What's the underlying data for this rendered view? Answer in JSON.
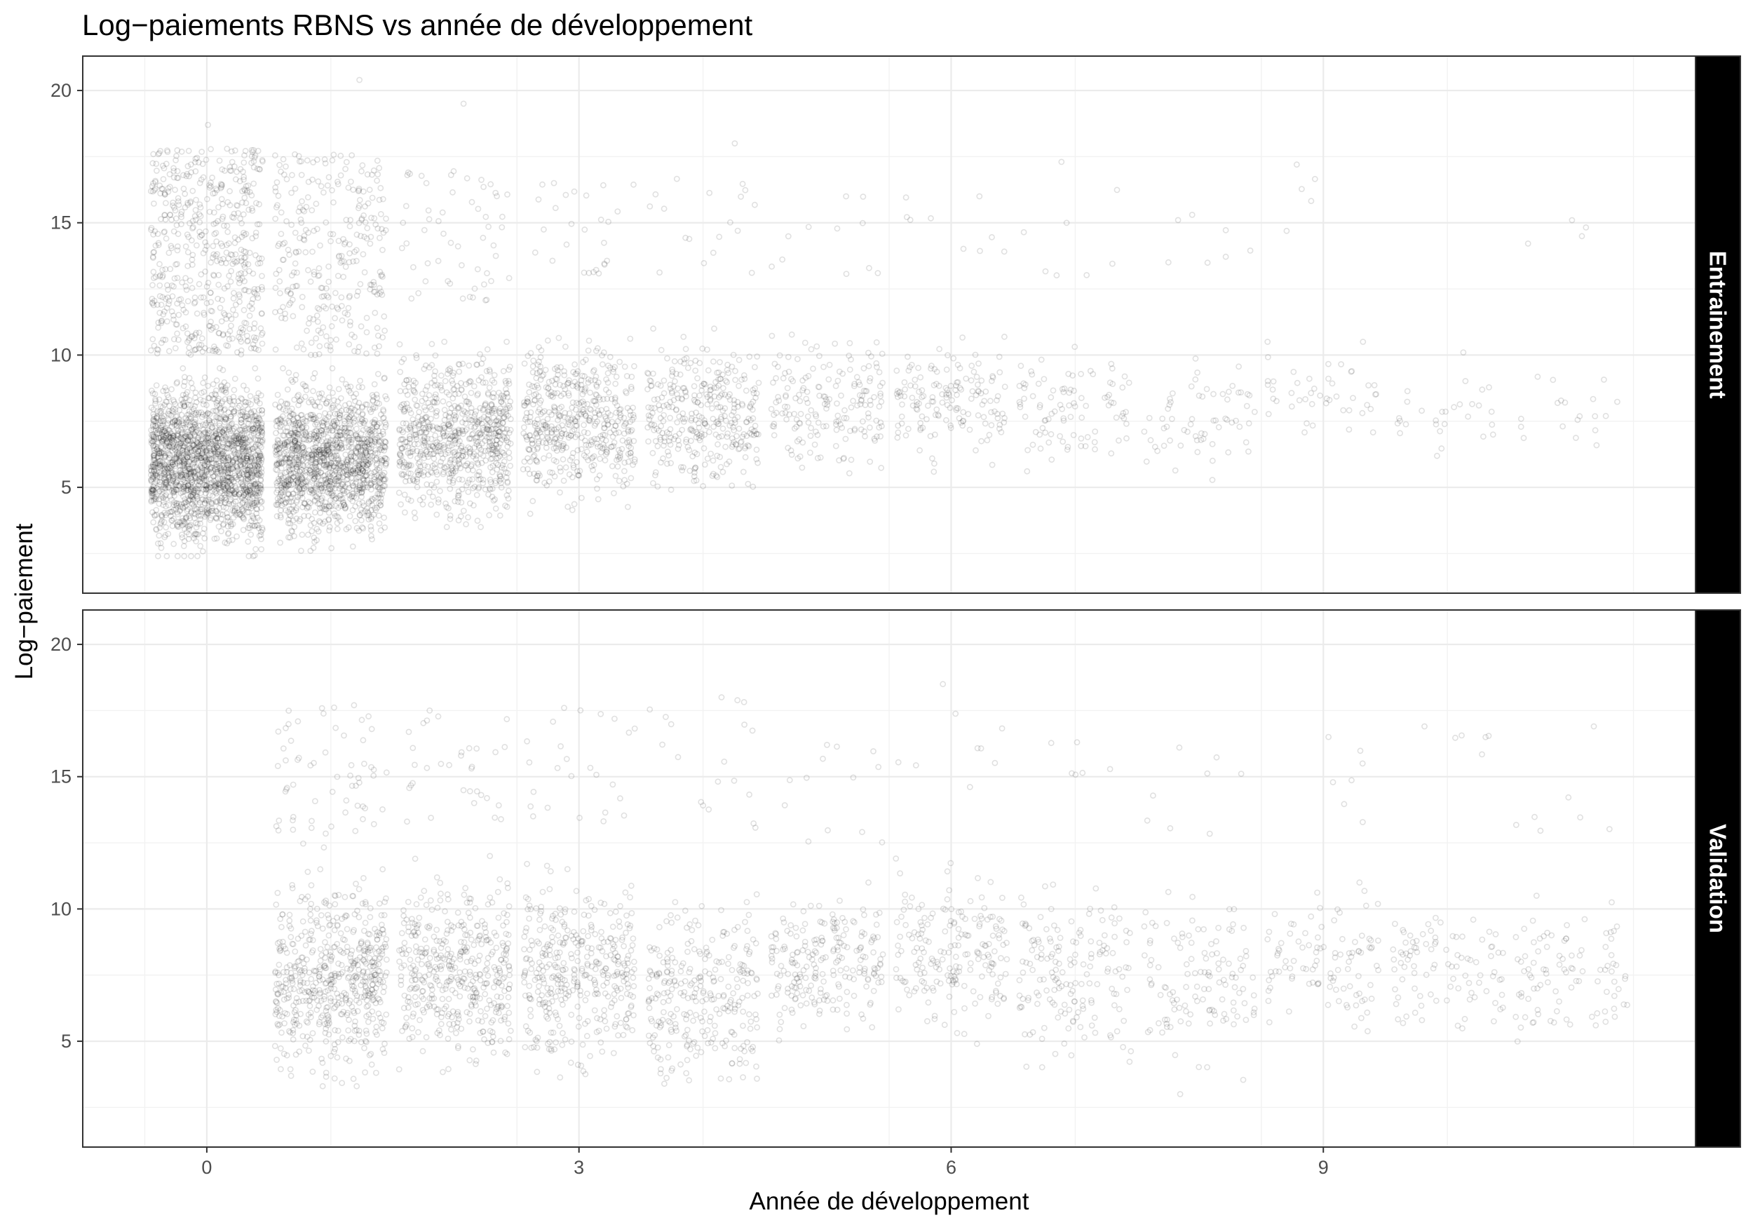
{
  "chart_data": {
    "type": "scatter",
    "title": "Log−paiements RBNS vs année de développement",
    "xlabel": "Année de développement",
    "ylabel": "Log−paiement",
    "xlim": [
      -1,
      12
    ],
    "ylim": [
      1,
      21.3
    ],
    "x_ticks": [
      0,
      3,
      6,
      9
    ],
    "y_ticks": [
      5,
      10,
      15,
      20
    ],
    "grid": true,
    "point_style": {
      "color": "#000000",
      "opacity": 0.12,
      "shape": "open-circle"
    },
    "x_jitter": 0.45,
    "panels": [
      {
        "strip_label": "Entrainement",
        "groups": [
          {
            "x": 0,
            "n_points": 2400,
            "core_range": [
              2.4,
              9.5
            ],
            "tail_range": [
              10,
              17.8
            ],
            "tail_fraction": 0.22,
            "max": 18.7
          },
          {
            "x": 1,
            "n_points": 1600,
            "core_range": [
              2.6,
              9.5
            ],
            "tail_range": [
              10,
              17.6
            ],
            "tail_fraction": 0.18,
            "max": 20.4
          },
          {
            "x": 2,
            "n_points": 800,
            "core_range": [
              3.5,
              10.5
            ],
            "tail_range": [
              12,
              17
            ],
            "tail_fraction": 0.07,
            "max": 19.5
          },
          {
            "x": 3,
            "n_points": 520,
            "core_range": [
              4.0,
              11.0
            ],
            "tail_range": [
              13,
              16.5
            ],
            "tail_fraction": 0.05,
            "max": 16.5
          },
          {
            "x": 4,
            "n_points": 360,
            "core_range": [
              4.5,
              11.0
            ],
            "tail_range": [
              13,
              16.7
            ],
            "tail_fraction": 0.05,
            "max": 18.0
          },
          {
            "x": 5,
            "n_points": 190,
            "core_range": [
              5.0,
              11.5
            ],
            "tail_range": [
              13,
              16.0
            ],
            "tail_fraction": 0.05,
            "max": 16.0
          },
          {
            "x": 6,
            "n_points": 160,
            "core_range": [
              5.5,
              11.0
            ],
            "tail_range": [
              13,
              16.0
            ],
            "tail_fraction": 0.05,
            "max": 16.0
          },
          {
            "x": 7,
            "n_points": 100,
            "core_range": [
              5.5,
              10.5
            ],
            "tail_range": [
              13,
              17.3
            ],
            "tail_fraction": 0.07,
            "max": 17.3
          },
          {
            "x": 8,
            "n_points": 70,
            "core_range": [
              5.0,
              10.3
            ],
            "tail_range": [
              13.3,
              15.3
            ],
            "tail_fraction": 0.08,
            "max": 15.3
          },
          {
            "x": 9,
            "n_points": 50,
            "core_range": [
              6.5,
              10.5
            ],
            "tail_range": [
              13.6,
              17.2
            ],
            "tail_fraction": 0.08,
            "max": 17.2
          },
          {
            "x": 10,
            "n_points": 28,
            "core_range": [
              5.5,
              10.0
            ],
            "tail_range": [
              14,
              15
            ],
            "tail_fraction": 0.0,
            "max": 10.1
          },
          {
            "x": 11,
            "n_points": 22,
            "core_range": [
              6.0,
              10.0
            ],
            "tail_range": [
              14.2,
              15.1
            ],
            "tail_fraction": 0.15,
            "max": 15.1
          }
        ]
      },
      {
        "strip_label": "Validation",
        "groups": [
          {
            "x": 1,
            "n_points": 620,
            "core_range": [
              3.3,
              11.5
            ],
            "tail_range": [
              12.3,
              17.7
            ],
            "tail_fraction": 0.1,
            "max": 17.7
          },
          {
            "x": 2,
            "n_points": 460,
            "core_range": [
              3.6,
              12.0
            ],
            "tail_range": [
              13.3,
              17.5
            ],
            "tail_fraction": 0.07,
            "max": 17.5
          },
          {
            "x": 3,
            "n_points": 400,
            "core_range": [
              3.5,
              11.7
            ],
            "tail_range": [
              13.3,
              17.6
            ],
            "tail_fraction": 0.06,
            "max": 17.6
          },
          {
            "x": 4,
            "n_points": 300,
            "core_range": [
              2.5,
              11.0
            ],
            "tail_range": [
              13,
              18.0
            ],
            "tail_fraction": 0.06,
            "max": 18.0
          },
          {
            "x": 5,
            "n_points": 230,
            "core_range": [
              4.9,
              11.0
            ],
            "tail_range": [
              12.5,
              16.2
            ],
            "tail_fraction": 0.05,
            "max": 16.2
          },
          {
            "x": 6,
            "n_points": 200,
            "core_range": [
              4.9,
              12.0
            ],
            "tail_range": [
              14.5,
              18.5
            ],
            "tail_fraction": 0.04,
            "max": 18.5
          },
          {
            "x": 7,
            "n_points": 170,
            "core_range": [
              3.5,
              11.5
            ],
            "tail_range": [
              14.5,
              16.3
            ],
            "tail_fraction": 0.03,
            "max": 16.3
          },
          {
            "x": 8,
            "n_points": 130,
            "core_range": [
              3.0,
              11.3
            ],
            "tail_range": [
              12.8,
              16.1
            ],
            "tail_fraction": 0.05,
            "max": 16.1
          },
          {
            "x": 9,
            "n_points": 110,
            "core_range": [
              5.0,
              11.0
            ],
            "tail_range": [
              12.7,
              16.5
            ],
            "tail_fraction": 0.05,
            "max": 16.5
          },
          {
            "x": 10,
            "n_points": 100,
            "core_range": [
              5.0,
              10.7
            ],
            "tail_range": [
              14.9,
              16.9
            ],
            "tail_fraction": 0.05,
            "max": 16.9
          },
          {
            "x": 11,
            "n_points": 100,
            "core_range": [
              4.5,
              10.5
            ],
            "tail_range": [
              12.6,
              16.9
            ],
            "tail_fraction": 0.06,
            "max": 16.9
          }
        ]
      }
    ]
  }
}
